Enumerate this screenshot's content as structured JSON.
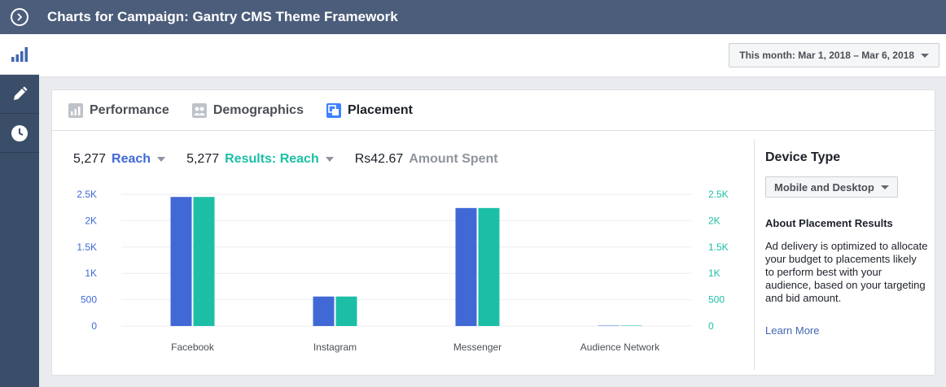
{
  "header": {
    "title": "Charts for Campaign: Gantry CMS Theme Framework"
  },
  "sidebar": {
    "items": [
      {
        "icon": "bar-chart-icon",
        "active": true
      },
      {
        "icon": "pencil-icon",
        "active": false
      },
      {
        "icon": "clock-icon",
        "active": false
      }
    ]
  },
  "toolbar": {
    "date_range": "This month: Mar 1, 2018 – Mar 6, 2018"
  },
  "tabs": [
    {
      "label": "Performance",
      "icon": "bar-chart-icon"
    },
    {
      "label": "Demographics",
      "icon": "people-icon"
    },
    {
      "label": "Placement",
      "icon": "placement-icon"
    }
  ],
  "metrics": {
    "reach": {
      "value": "5,277",
      "label": "Reach"
    },
    "results": {
      "value": "5,277",
      "label": "Results: Reach"
    },
    "spent": {
      "value": "Rs42.67",
      "label": "Amount Spent"
    }
  },
  "colors": {
    "reach": "#4169d6",
    "results": "#1cbfa6",
    "spent": "#90949c"
  },
  "chart_data": {
    "type": "bar",
    "categories": [
      "Facebook",
      "Instagram",
      "Messenger",
      "Audience Network"
    ],
    "series": [
      {
        "name": "Reach",
        "values": [
          2450,
          560,
          2240,
          8
        ]
      },
      {
        "name": "Results: Reach",
        "values": [
          2450,
          560,
          2240,
          8
        ]
      }
    ],
    "yticks": [
      "0",
      "500",
      "1K",
      "1.5K",
      "2K",
      "2.5K"
    ],
    "ylim": [
      0,
      2500
    ],
    "grid": true
  },
  "device_panel": {
    "title": "Device Type",
    "select": "Mobile and Desktop",
    "subtitle": "About Placement Results",
    "description": "Ad delivery is optimized to allocate your budget to placements likely to perform best with your audience, based on your targeting and bid amount.",
    "link": "Learn More"
  }
}
